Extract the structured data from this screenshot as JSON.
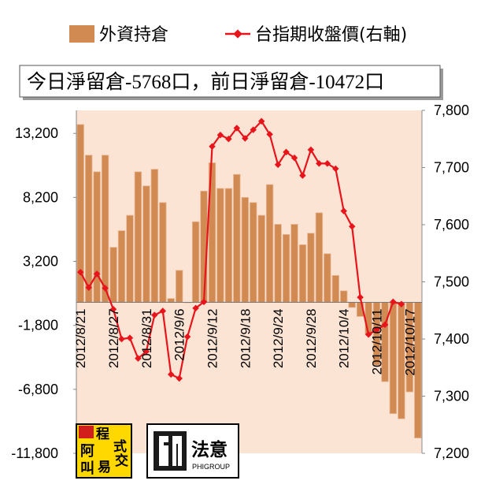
{
  "chart_data": {
    "type": "bar+line",
    "legend": [
      {
        "label": "外資持倉",
        "kind": "bar",
        "color": "#d08a52"
      },
      {
        "label": "台指期收盤價(右軸)",
        "kind": "line",
        "color": "#e8141b"
      }
    ],
    "annotation": "今日淨留倉-5768口，前日淨留倉-10472口",
    "y_left": {
      "ticks": [
        "13,200",
        "8,200",
        "3,200",
        "-1,800",
        "-6,800",
        "-11,800"
      ],
      "ylim": [
        -11800,
        15000
      ]
    },
    "y_right": {
      "ticks": [
        "7,800",
        "7,700",
        "7,600",
        "7,500",
        "7,400",
        "7,300",
        "7,200"
      ],
      "ylim": [
        7200,
        7800
      ]
    },
    "x_tick_labels": [
      "2012/8/21",
      "2012/8/27",
      "2012/8/31",
      "2012/9/6",
      "2012/9/12",
      "2012/9/18",
      "2012/9/24",
      "2012/9/28",
      "2012/10/4",
      "2012/10/11",
      "2012/10/17"
    ],
    "x_tick_indices": [
      0,
      4,
      8,
      12,
      16,
      20,
      24,
      28,
      32,
      36,
      40
    ],
    "bars": [
      13900,
      11500,
      10200,
      11500,
      4300,
      5600,
      6800,
      10200,
      9100,
      10400,
      7800,
      300,
      2500,
      0,
      6300,
      8700,
      10900,
      8900,
      8900,
      10000,
      8200,
      7800,
      6800,
      9200,
      6100,
      5300,
      6100,
      4500,
      5400,
      7000,
      3800,
      2100,
      900,
      -400,
      -1100,
      -2500,
      -4900,
      -6200,
      -8700,
      -9100,
      -7000,
      -10600
    ],
    "line": [
      7517,
      7490,
      7514,
      7489,
      7452,
      7400,
      7402,
      7366,
      7378,
      7442,
      7449,
      7338,
      7331,
      7404,
      7454,
      7465,
      7737,
      7757,
      7750,
      7769,
      7751,
      7766,
      7781,
      7758,
      7705,
      7727,
      7717,
      7686,
      7731,
      7707,
      7707,
      7698,
      7624,
      7597,
      7473,
      7408,
      7416,
      7425,
      7465,
      7461
    ],
    "line_x_indices": [
      0,
      1,
      2,
      3,
      4,
      5,
      6,
      7,
      8,
      9,
      10,
      11,
      12,
      13,
      14,
      15,
      16,
      17,
      18,
      19,
      20,
      21,
      22,
      23,
      24,
      25,
      26,
      27,
      28,
      29,
      30,
      31,
      32,
      33,
      34,
      35,
      36,
      37,
      38,
      39
    ],
    "grid": false
  },
  "logos": {
    "logo1": {
      "chars": [
        "阿",
        "程",
        "式",
        "叫",
        "易",
        "交"
      ]
    },
    "logo2": {
      "text": "法意",
      "sub": "PHIGROUP"
    }
  }
}
